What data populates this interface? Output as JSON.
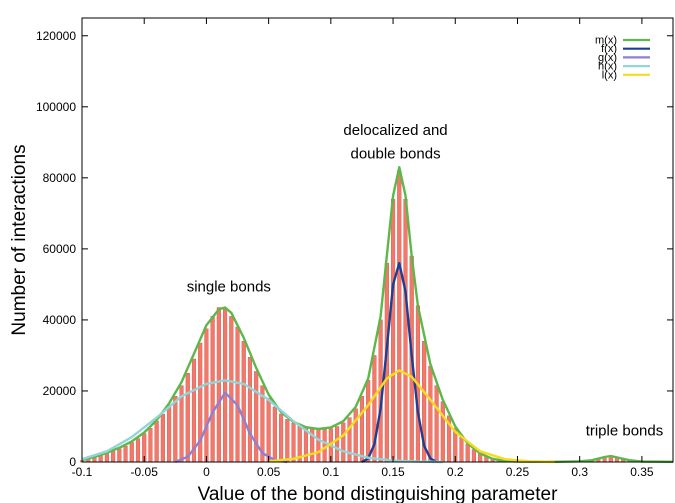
{
  "chart_data": {
    "type": "bar",
    "xlabel": "Value of the bond distinguishing parameter",
    "ylabel": "Number of interactions",
    "xlim": [
      -0.1,
      0.375
    ],
    "ylim": [
      0,
      125000
    ],
    "x_ticks": [
      "-0.1",
      "-0.05",
      "0",
      "0.05",
      "0.1",
      "0.15",
      "0.2",
      "0.25",
      "0.3",
      "0.35"
    ],
    "x_tick_values": [
      -0.1,
      -0.05,
      0,
      0.05,
      0.1,
      0.15,
      0.2,
      0.25,
      0.3,
      0.35
    ],
    "y_ticks": [
      "0",
      "20000",
      "40000",
      "60000",
      "80000",
      "100000",
      "120000"
    ],
    "y_tick_values": [
      0,
      20000,
      40000,
      60000,
      80000,
      100000,
      120000
    ],
    "grid": false,
    "legend_position": "top-right",
    "annotations": [
      {
        "text": "single bonds",
        "x": 0.018,
        "y": 48000
      },
      {
        "text": "delocalized and",
        "x": 0.152,
        "y": 92000
      },
      {
        "text": "double bonds",
        "x": 0.152,
        "y": 85500
      },
      {
        "text": "triple bonds",
        "x": 0.336,
        "y": 7500
      }
    ],
    "histogram": {
      "color": "#f4786a",
      "bin_width": 0.003,
      "bins": [
        {
          "x": -0.1,
          "y": 400
        },
        {
          "x": -0.095,
          "y": 800
        },
        {
          "x": -0.09,
          "y": 1300
        },
        {
          "x": -0.085,
          "y": 1800
        },
        {
          "x": -0.08,
          "y": 2400
        },
        {
          "x": -0.075,
          "y": 3000
        },
        {
          "x": -0.07,
          "y": 3700
        },
        {
          "x": -0.065,
          "y": 4500
        },
        {
          "x": -0.06,
          "y": 5500
        },
        {
          "x": -0.055,
          "y": 6600
        },
        {
          "x": -0.05,
          "y": 8000
        },
        {
          "x": -0.045,
          "y": 9500
        },
        {
          "x": -0.04,
          "y": 11500
        },
        {
          "x": -0.035,
          "y": 13500
        },
        {
          "x": -0.03,
          "y": 16000
        },
        {
          "x": -0.025,
          "y": 18500
        },
        {
          "x": -0.02,
          "y": 21500
        },
        {
          "x": -0.015,
          "y": 25000
        },
        {
          "x": -0.01,
          "y": 29000
        },
        {
          "x": -0.005,
          "y": 33500
        },
        {
          "x": 0.0,
          "y": 37500
        },
        {
          "x": 0.005,
          "y": 41000
        },
        {
          "x": 0.01,
          "y": 43500
        },
        {
          "x": 0.015,
          "y": 43000
        },
        {
          "x": 0.02,
          "y": 41000
        },
        {
          "x": 0.025,
          "y": 38000
        },
        {
          "x": 0.03,
          "y": 34000
        },
        {
          "x": 0.035,
          "y": 29500
        },
        {
          "x": 0.04,
          "y": 25500
        },
        {
          "x": 0.045,
          "y": 21500
        },
        {
          "x": 0.05,
          "y": 18000
        },
        {
          "x": 0.055,
          "y": 15500
        },
        {
          "x": 0.06,
          "y": 13500
        },
        {
          "x": 0.065,
          "y": 12000
        },
        {
          "x": 0.07,
          "y": 11000
        },
        {
          "x": 0.075,
          "y": 10200
        },
        {
          "x": 0.08,
          "y": 9600
        },
        {
          "x": 0.085,
          "y": 9300
        },
        {
          "x": 0.09,
          "y": 9200
        },
        {
          "x": 0.095,
          "y": 9200
        },
        {
          "x": 0.1,
          "y": 9400
        },
        {
          "x": 0.105,
          "y": 10000
        },
        {
          "x": 0.11,
          "y": 11000
        },
        {
          "x": 0.115,
          "y": 12500
        },
        {
          "x": 0.12,
          "y": 15000
        },
        {
          "x": 0.125,
          "y": 18500
        },
        {
          "x": 0.13,
          "y": 23000
        },
        {
          "x": 0.135,
          "y": 30000
        },
        {
          "x": 0.14,
          "y": 40000
        },
        {
          "x": 0.145,
          "y": 56000
        },
        {
          "x": 0.15,
          "y": 74000
        },
        {
          "x": 0.155,
          "y": 82000
        },
        {
          "x": 0.16,
          "y": 74000
        },
        {
          "x": 0.165,
          "y": 58000
        },
        {
          "x": 0.17,
          "y": 44000
        },
        {
          "x": 0.175,
          "y": 34000
        },
        {
          "x": 0.18,
          "y": 27000
        },
        {
          "x": 0.185,
          "y": 21500
        },
        {
          "x": 0.19,
          "y": 17000
        },
        {
          "x": 0.195,
          "y": 13000
        },
        {
          "x": 0.2,
          "y": 9500
        },
        {
          "x": 0.205,
          "y": 7000
        },
        {
          "x": 0.21,
          "y": 5000
        },
        {
          "x": 0.215,
          "y": 3500
        },
        {
          "x": 0.22,
          "y": 2300
        },
        {
          "x": 0.225,
          "y": 1500
        },
        {
          "x": 0.23,
          "y": 900
        },
        {
          "x": 0.235,
          "y": 500
        },
        {
          "x": 0.24,
          "y": 300
        },
        {
          "x": 0.245,
          "y": 200
        },
        {
          "x": 0.25,
          "y": 100
        },
        {
          "x": 0.26,
          "y": 50
        },
        {
          "x": 0.27,
          "y": 50
        },
        {
          "x": 0.28,
          "y": 50
        },
        {
          "x": 0.29,
          "y": 100
        },
        {
          "x": 0.3,
          "y": 200
        },
        {
          "x": 0.305,
          "y": 300
        },
        {
          "x": 0.31,
          "y": 500
        },
        {
          "x": 0.315,
          "y": 900
        },
        {
          "x": 0.32,
          "y": 1500
        },
        {
          "x": 0.325,
          "y": 1800
        },
        {
          "x": 0.33,
          "y": 1200
        },
        {
          "x": 0.335,
          "y": 700
        },
        {
          "x": 0.34,
          "y": 400
        },
        {
          "x": 0.345,
          "y": 200
        },
        {
          "x": 0.35,
          "y": 150
        },
        {
          "x": 0.36,
          "y": 100
        },
        {
          "x": 0.37,
          "y": 50
        }
      ]
    },
    "series": [
      {
        "name": "m(x)",
        "color": "#5db84a",
        "points": [
          [
            -0.1,
            500
          ],
          [
            -0.09,
            1400
          ],
          [
            -0.08,
            2600
          ],
          [
            -0.07,
            4000
          ],
          [
            -0.06,
            5800
          ],
          [
            -0.05,
            8300
          ],
          [
            -0.04,
            11800
          ],
          [
            -0.03,
            16500
          ],
          [
            -0.02,
            22500
          ],
          [
            -0.01,
            30500
          ],
          [
            0.0,
            38500
          ],
          [
            0.01,
            43000
          ],
          [
            0.015,
            43500
          ],
          [
            0.02,
            42000
          ],
          [
            0.03,
            35000
          ],
          [
            0.04,
            26500
          ],
          [
            0.05,
            19000
          ],
          [
            0.06,
            14000
          ],
          [
            0.07,
            11300
          ],
          [
            0.08,
            9800
          ],
          [
            0.09,
            9300
          ],
          [
            0.1,
            9700
          ],
          [
            0.11,
            11500
          ],
          [
            0.12,
            15500
          ],
          [
            0.13,
            23500
          ],
          [
            0.14,
            41000
          ],
          [
            0.145,
            58000
          ],
          [
            0.15,
            75000
          ],
          [
            0.155,
            83000
          ],
          [
            0.16,
            75000
          ],
          [
            0.165,
            58000
          ],
          [
            0.17,
            44000
          ],
          [
            0.18,
            27500
          ],
          [
            0.19,
            17500
          ],
          [
            0.2,
            10000
          ],
          [
            0.21,
            5200
          ],
          [
            0.22,
            2400
          ],
          [
            0.23,
            900
          ],
          [
            0.24,
            300
          ],
          [
            0.25,
            100
          ],
          [
            0.28,
            50
          ],
          [
            0.3,
            200
          ],
          [
            0.31,
            500
          ],
          [
            0.32,
            1400
          ],
          [
            0.325,
            1700
          ],
          [
            0.33,
            1300
          ],
          [
            0.34,
            500
          ],
          [
            0.35,
            150
          ],
          [
            0.375,
            50
          ]
        ]
      },
      {
        "name": "f(x)",
        "color": "#1b3f95",
        "points": [
          [
            0.125,
            0
          ],
          [
            0.13,
            1000
          ],
          [
            0.135,
            5000
          ],
          [
            0.14,
            15000
          ],
          [
            0.145,
            32000
          ],
          [
            0.15,
            50000
          ],
          [
            0.155,
            56000
          ],
          [
            0.16,
            48000
          ],
          [
            0.165,
            30000
          ],
          [
            0.17,
            14000
          ],
          [
            0.175,
            4500
          ],
          [
            0.18,
            1000
          ],
          [
            0.185,
            0
          ]
        ]
      },
      {
        "name": "g(x)",
        "color": "#8f7fd4",
        "points": [
          [
            -0.025,
            0
          ],
          [
            -0.015,
            1500
          ],
          [
            -0.005,
            6000
          ],
          [
            0.005,
            14000
          ],
          [
            0.015,
            19500
          ],
          [
            0.025,
            16000
          ],
          [
            0.035,
            8000
          ],
          [
            0.045,
            2500
          ],
          [
            0.055,
            500
          ],
          [
            0.065,
            0
          ]
        ]
      },
      {
        "name": "h(x)",
        "color": "#92d5d8",
        "points": [
          [
            -0.1,
            800
          ],
          [
            -0.08,
            3000
          ],
          [
            -0.06,
            7000
          ],
          [
            -0.04,
            12500
          ],
          [
            -0.02,
            18500
          ],
          [
            0.0,
            22000
          ],
          [
            0.015,
            23000
          ],
          [
            0.03,
            22000
          ],
          [
            0.05,
            17500
          ],
          [
            0.07,
            11500
          ],
          [
            0.09,
            6300
          ],
          [
            0.11,
            3000
          ],
          [
            0.13,
            1200
          ],
          [
            0.15,
            400
          ],
          [
            0.17,
            100
          ],
          [
            0.19,
            0
          ]
        ]
      },
      {
        "name": "l(x)",
        "color": "#f5dc1e",
        "points": [
          [
            0.05,
            200
          ],
          [
            0.07,
            900
          ],
          [
            0.09,
            2800
          ],
          [
            0.11,
            7500
          ],
          [
            0.13,
            16000
          ],
          [
            0.145,
            23500
          ],
          [
            0.155,
            25800
          ],
          [
            0.165,
            24000
          ],
          [
            0.18,
            17500
          ],
          [
            0.2,
            8500
          ],
          [
            0.22,
            3000
          ],
          [
            0.24,
            800
          ],
          [
            0.26,
            200
          ],
          [
            0.28,
            0
          ]
        ]
      }
    ]
  }
}
